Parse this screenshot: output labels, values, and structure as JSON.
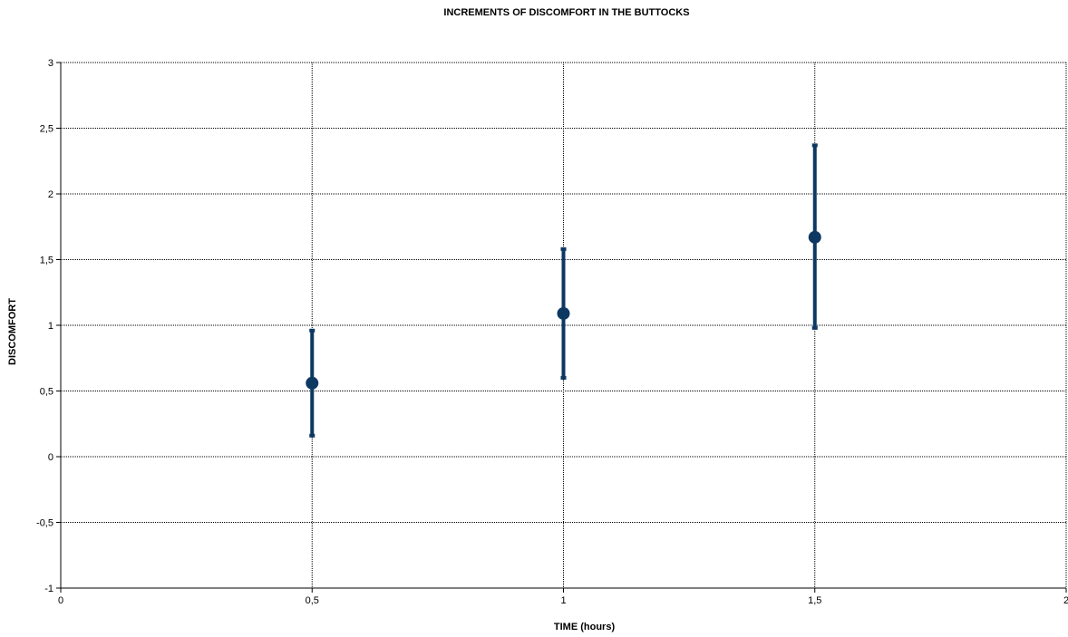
{
  "chart_data": {
    "type": "scatter",
    "title": "INCREMENTS OF DISCOMFORT IN THE BUTTOCKS",
    "xlabel": "TIME (hours)",
    "ylabel": "DISCOMFORT",
    "xlim": [
      0,
      2
    ],
    "ylim": [
      -1,
      3
    ],
    "x_ticks": [
      0,
      0.5,
      1,
      1.5,
      2
    ],
    "x_tick_labels": [
      "0",
      "0,5",
      "1",
      "1,5",
      "2"
    ],
    "y_ticks": [
      -1,
      -0.5,
      0,
      0.5,
      1,
      1.5,
      2,
      2.5,
      3
    ],
    "y_tick_labels": [
      "-1",
      "-0,5",
      "0",
      "0,5",
      "1",
      "1,5",
      "2",
      "2,5",
      "3"
    ],
    "grid": true,
    "legend": "none",
    "series": [
      {
        "color": "#0d3862",
        "points": [
          {
            "x": 0.5,
            "y": 0.56,
            "err_low": 0.16,
            "err_high": 0.96
          },
          {
            "x": 1.0,
            "y": 1.09,
            "err_low": 0.6,
            "err_high": 1.58
          },
          {
            "x": 1.5,
            "y": 1.67,
            "err_low": 0.98,
            "err_high": 2.37
          }
        ]
      }
    ]
  }
}
